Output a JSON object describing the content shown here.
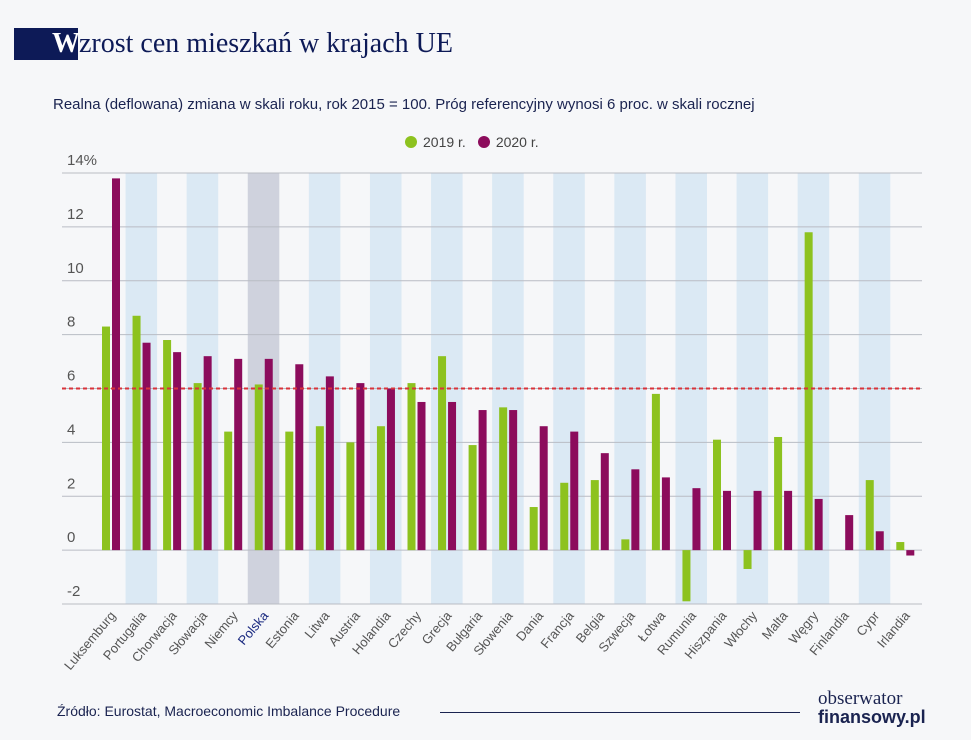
{
  "header": {
    "title_initial": "W",
    "title_rest": "zrost cen mieszkań w krajach UE",
    "subtitle": "Realna (deflowana) zmiana w skali roku, rok 2015 = 100. Próg referencyjny wynosi 6 proc. w skali rocznej"
  },
  "footer": {
    "source": "Źródło: Eurostat, Macroeconomic Imbalance Procedure",
    "logo_line1": "obserwator",
    "logo_line2": "finansowy.pl"
  },
  "chart_data": {
    "type": "bar",
    "ylim": [
      -2,
      14
    ],
    "yticks": [
      {
        "v": 14,
        "label": "14%"
      },
      {
        "v": 12,
        "label": "12"
      },
      {
        "v": 10,
        "label": "10"
      },
      {
        "v": 8,
        "label": "8"
      },
      {
        "v": 6,
        "label": "6"
      },
      {
        "v": 4,
        "label": "4"
      },
      {
        "v": 2,
        "label": "2"
      },
      {
        "v": 0,
        "label": "0"
      },
      {
        "v": -2,
        "label": "-2"
      }
    ],
    "grid": true,
    "legend_placement": "top-center",
    "reference_line": {
      "value": 6,
      "color": "#d9333a"
    },
    "highlight_category": "Polska",
    "categories": [
      "Luksemburg",
      "Portugalia",
      "Chorwacja",
      "Słowacja",
      "Niemcy",
      "Polska",
      "Estonia",
      "Litwa",
      "Austria",
      "Holandia",
      "Czechy",
      "Grecja",
      "Bułgaria",
      "Słowenia",
      "Dania",
      "Francja",
      "Belgia",
      "Szwecja",
      "Łotwa",
      "Rumunia",
      "Hiszpania",
      "Włochy",
      "Malta",
      "Węgry",
      "Finlandia",
      "Cypr",
      "Irlandia"
    ],
    "series": [
      {
        "name": "2019 r.",
        "color": "#8dc21f",
        "values": [
          8.3,
          8.7,
          7.8,
          6.2,
          4.4,
          6.15,
          4.4,
          4.6,
          4.0,
          4.6,
          6.2,
          7.2,
          3.9,
          5.3,
          1.6,
          2.5,
          2.6,
          0.4,
          5.8,
          -1.9,
          4.1,
          -0.7,
          4.2,
          11.8,
          0,
          2.6,
          0.3
        ]
      },
      {
        "name": "2020 r.",
        "color": "#8c0c5c",
        "values": [
          13.8,
          7.7,
          7.35,
          7.2,
          7.1,
          7.1,
          6.9,
          6.45,
          6.2,
          6.0,
          5.5,
          5.5,
          5.2,
          5.2,
          4.6,
          4.4,
          3.6,
          3.0,
          2.7,
          2.3,
          2.2,
          2.2,
          2.2,
          1.9,
          1.3,
          0.7,
          -0.2
        ]
      }
    ]
  }
}
